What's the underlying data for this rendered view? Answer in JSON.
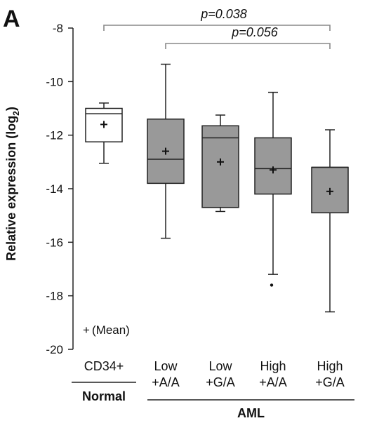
{
  "chart_data": {
    "type": "box",
    "panel_label": "A",
    "ylabel_main": "Relative expression (log",
    "ylabel_sub": "2",
    "ylabel_close": ")",
    "ylim": [
      -20,
      -8
    ],
    "yticks": [
      -20,
      -18,
      -16,
      -14,
      -12,
      -10,
      -8
    ],
    "grid": false,
    "categories": [
      {
        "line1": "CD34+",
        "line2": "",
        "fill": "#ffffff",
        "whisker_low": -13.05,
        "q1": -12.25,
        "median": -11.2,
        "q3": -11.0,
        "whisker_high": -10.8,
        "mean": -11.6,
        "outliers": []
      },
      {
        "line1": "Low",
        "line2": "+A/A",
        "fill": "#999999",
        "whisker_low": -15.85,
        "q1": -13.8,
        "median": -12.9,
        "q3": -11.4,
        "whisker_high": -9.35,
        "mean": -12.6,
        "outliers": []
      },
      {
        "line1": "Low",
        "line2": "+G/A",
        "fill": "#999999",
        "whisker_low": -14.85,
        "q1": -14.7,
        "median": -12.1,
        "q3": -11.65,
        "whisker_high": -11.25,
        "mean": -13.0,
        "outliers": []
      },
      {
        "line1": "High",
        "line2": "+A/A",
        "fill": "#999999",
        "whisker_low": -17.2,
        "q1": -14.2,
        "median": -13.25,
        "q3": -12.1,
        "whisker_high": -10.4,
        "mean": -13.3,
        "outliers": [
          -17.6
        ]
      },
      {
        "line1": "High",
        "line2": "+G/A",
        "fill": "#999999",
        "whisker_low": -18.6,
        "q1": -14.9,
        "median": -13.2,
        "q3": -13.2,
        "whisker_high": -11.8,
        "mean": -14.1,
        "outliers": []
      }
    ],
    "groups": [
      {
        "label": "Normal",
        "from": 0,
        "to": 0
      },
      {
        "label": "AML",
        "from": 1,
        "to": 4
      }
    ],
    "annotations": [
      {
        "text": "p=0.038",
        "from": 0,
        "to": 4,
        "level": 1
      },
      {
        "text": "p=0.056",
        "from": 1,
        "to": 4,
        "level": 2
      }
    ],
    "legend": {
      "symbol": "+",
      "text": "(Mean)",
      "placement": "bottom-left"
    }
  }
}
